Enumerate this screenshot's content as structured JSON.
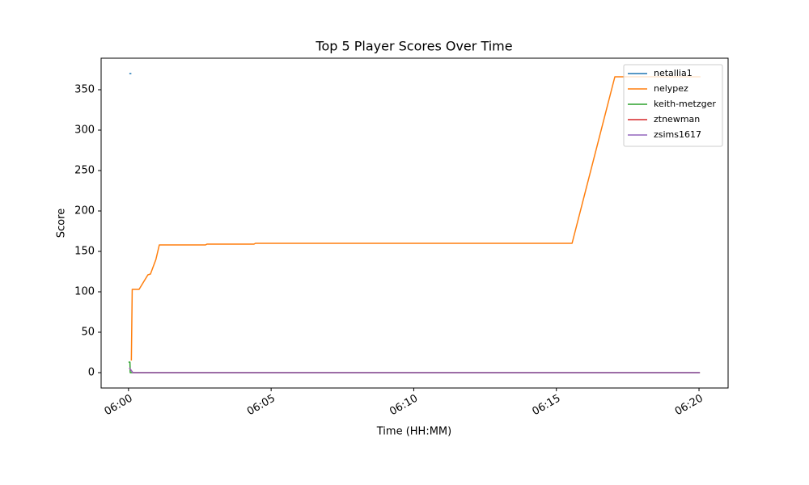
{
  "chart_data": {
    "type": "line",
    "title": "Top 5 Player Scores Over Time",
    "x_label": "Time (HH:MM)",
    "y_label": "Score",
    "xlim": [
      -0.96,
      21.02
    ],
    "ylim": [
      -19,
      389
    ],
    "xticks": [
      {
        "value": 0,
        "label": "06:00"
      },
      {
        "value": 5,
        "label": "06:05"
      },
      {
        "value": 10,
        "label": "06:10"
      },
      {
        "value": 15,
        "label": "06:15"
      },
      {
        "value": 20,
        "label": "06:20"
      }
    ],
    "yticks": [
      0,
      50,
      100,
      150,
      200,
      250,
      300,
      350
    ],
    "grid": false,
    "legend": "upper right",
    "series": [
      {
        "name": "netallia1",
        "color": "#1f77b4",
        "x": [
          0.03,
          0.1
        ],
        "values": [
          370,
          370
        ]
      },
      {
        "name": "nelypez",
        "color": "#ff7f0e",
        "x": [
          0.1,
          0.13,
          0.37,
          0.68,
          0.77,
          0.96,
          1.08,
          2.7,
          2.75,
          4.4,
          4.45,
          15.55,
          17.05,
          17.45,
          20.05
        ],
        "values": [
          15,
          103,
          103,
          121,
          122,
          140,
          158,
          158,
          159,
          159,
          160,
          160,
          366,
          366,
          366
        ]
      },
      {
        "name": "keith-metzger",
        "color": "#2ca02c",
        "x": [
          0.0,
          0.05,
          0.06,
          20.03
        ],
        "values": [
          13,
          13,
          0,
          0
        ]
      },
      {
        "name": "ztnewman",
        "color": "#d62728",
        "x": [
          0.03,
          0.15,
          20.03
        ],
        "values": [
          6,
          0,
          0
        ]
      },
      {
        "name": "zsims1617",
        "color": "#9467bd",
        "x": [
          0.03,
          0.15,
          20.03
        ],
        "values": [
          6,
          0,
          0
        ]
      }
    ]
  }
}
